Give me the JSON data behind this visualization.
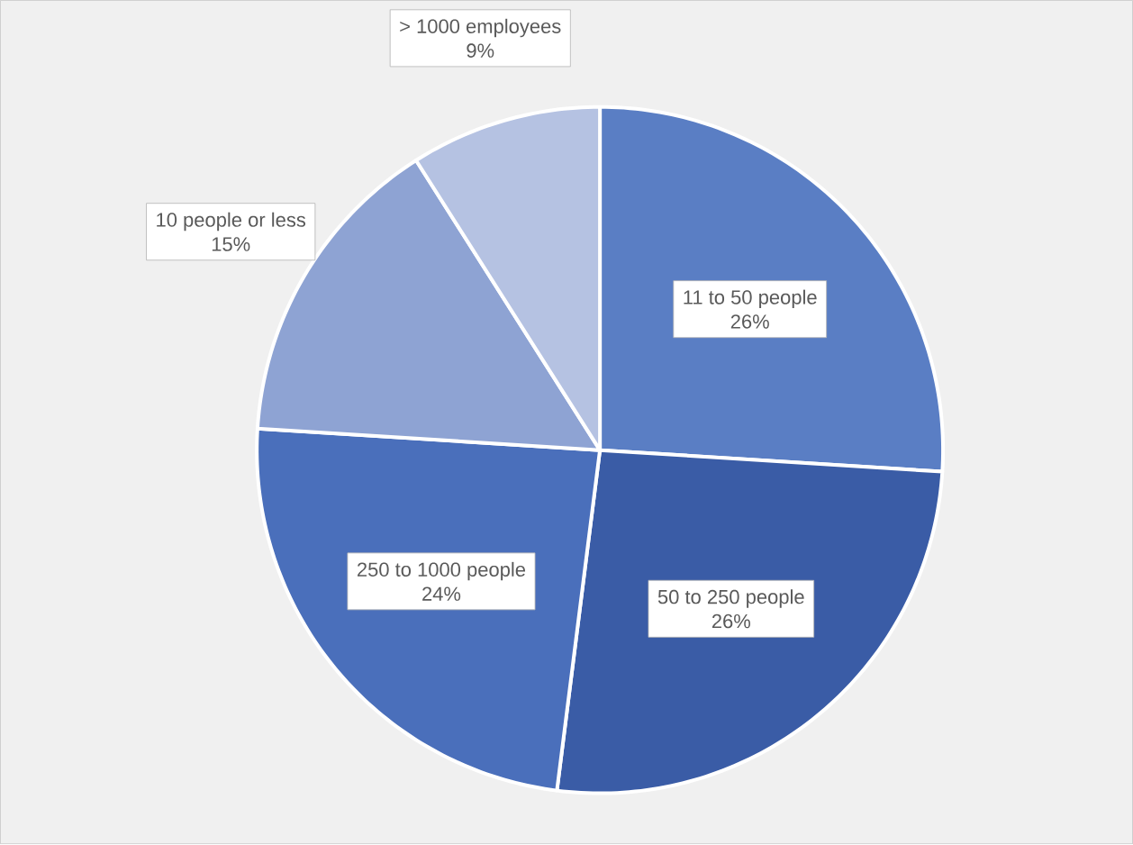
{
  "chart_data": {
    "type": "pie",
    "categories": [
      "11 to 50 people",
      "50 to 250 people",
      "250 to 1000 people",
      "10 people or less",
      "> 1000 employees"
    ],
    "values": [
      26,
      26,
      24,
      15,
      9
    ],
    "value_labels": [
      "26%",
      "26%",
      "24%",
      "15%",
      "9%"
    ],
    "colors": [
      "#5a7ec4",
      "#3a5ca6",
      "#4a6fbb",
      "#8ea3d3",
      "#b5c2e2"
    ]
  }
}
